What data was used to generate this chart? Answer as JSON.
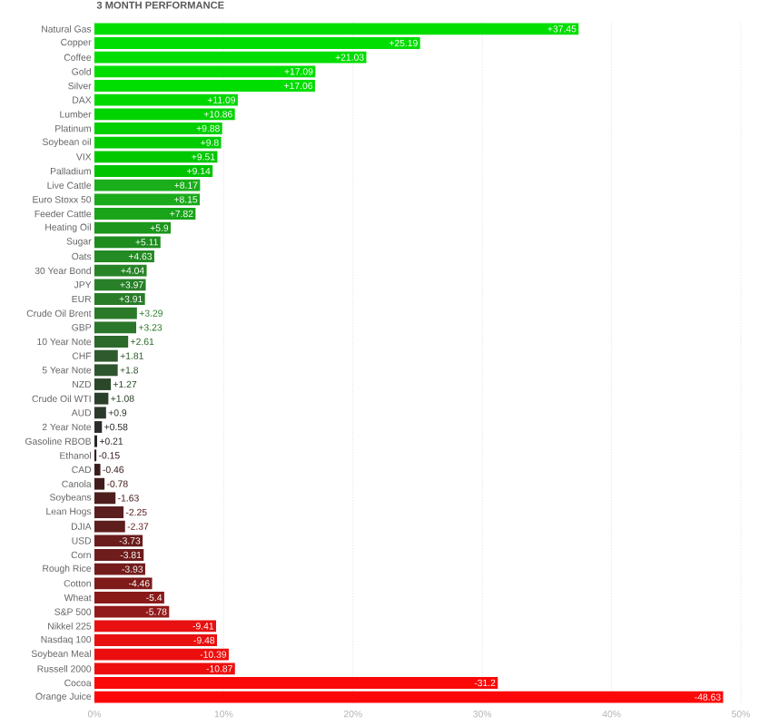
{
  "chart_data": {
    "type": "bar",
    "orientation": "horizontal",
    "title": "3 MONTH PERFORMANCE",
    "categories": [
      "Natural Gas",
      "Copper",
      "Coffee",
      "Gold",
      "Silver",
      "DAX",
      "Lumber",
      "Platinum",
      "Soybean oil",
      "VIX",
      "Palladium",
      "Live Cattle",
      "Euro Stoxx 50",
      "Feeder Cattle",
      "Heating Oil",
      "Sugar",
      "Oats",
      "30 Year Bond",
      "JPY",
      "EUR",
      "Crude Oil Brent",
      "GBP",
      "10 Year Note",
      "CHF",
      "5 Year Note",
      "NZD",
      "Crude Oil WTI",
      "AUD",
      "2 Year Note",
      "Gasoline RBOB",
      "Ethanol",
      "CAD",
      "Canola",
      "Soybeans",
      "Lean Hogs",
      "DJIA",
      "USD",
      "Corn",
      "Rough Rice",
      "Cotton",
      "Wheat",
      "S&P 500",
      "Nikkel 225",
      "Nasdaq 100",
      "Soybean Meal",
      "Russell 2000",
      "Cocoa",
      "Orange Juice"
    ],
    "values": [
      37.45,
      25.19,
      21.03,
      17.09,
      17.06,
      11.09,
      10.86,
      9.88,
      9.8,
      9.51,
      9.14,
      8.17,
      8.15,
      7.82,
      5.9,
      5.11,
      4.63,
      4.04,
      3.97,
      3.91,
      3.29,
      3.23,
      2.61,
      1.81,
      1.8,
      1.27,
      1.08,
      0.9,
      0.58,
      0.21,
      -0.15,
      -0.46,
      -0.78,
      -1.63,
      -2.25,
      -2.37,
      -3.73,
      -3.81,
      -3.93,
      -4.46,
      -5.4,
      -5.78,
      -9.41,
      -9.48,
      -10.39,
      -10.87,
      -31.2,
      -48.63
    ],
    "base": [
      0,
      0,
      0,
      0,
      0,
      0,
      0,
      0,
      0,
      0,
      0,
      0,
      0,
      0,
      0,
      0,
      0,
      0,
      0,
      0,
      0,
      0,
      0,
      0,
      0,
      0,
      0,
      0,
      0,
      0,
      0.15,
      0.46,
      0.78,
      1.63,
      2.25,
      2.37,
      3.73,
      3.81,
      3.93,
      4.46,
      5.4,
      5.78,
      9.41,
      9.48,
      10.39,
      10.87,
      31.2,
      48.63
    ],
    "value_labels": [
      "+37.45",
      "+25.19",
      "+21.03",
      "+17.09",
      "+17.06",
      "+11.09",
      "+10.86",
      "+9.88",
      "+9.8",
      "+9.51",
      "+9.14",
      "+8.17",
      "+8.15",
      "+7.82",
      "+5.9",
      "+5.11",
      "+4.63",
      "+4.04",
      "+3.97",
      "+3.91",
      "+3.29",
      "+3.23",
      "+2.61",
      "+1.81",
      "+1.8",
      "+1.27",
      "+1.08",
      "+0.9",
      "+0.58",
      "+0.21",
      "-0.15",
      "-0.46",
      "-0.78",
      "-1.63",
      "-2.25",
      "-2.37",
      "-3.73",
      "-3.81",
      "-3.93",
      "-4.46",
      "-5.4",
      "-5.78",
      "-9.41",
      "-9.48",
      "-10.39",
      "-10.87",
      "-31.2",
      "-48.63"
    ],
    "colors": [
      "#00dd00",
      "#00dd00",
      "#00dd00",
      "#00dd00",
      "#00dd00",
      "#00d800",
      "#00d400",
      "#00d000",
      "#00cc00",
      "#00c800",
      "#00c400",
      "#1aae1a",
      "#1aaa1a",
      "#1aa41a",
      "#1c961c",
      "#1e8c1e",
      "#248a24",
      "#268426",
      "#288028",
      "#287c28",
      "#2a7a2a",
      "#2a762a",
      "#2b6a2b",
      "#2e5a2e",
      "#2e562e",
      "#2a472a",
      "#2a402a",
      "#2b3a2b",
      "#2a2d2a",
      "#2c2626",
      "#321e1e",
      "#3a1c1c",
      "#421c1c",
      "#4e1e1e",
      "#5a1e1e",
      "#5e1e1e",
      "#6a1c1c",
      "#6e1c1c",
      "#741c1c",
      "#7e1a1a",
      "#8a1a1a",
      "#921a1a",
      "#e81010",
      "#e81010",
      "#ec0e0e",
      "#ee0e0e",
      "#fa0808",
      "#fc0808"
    ],
    "xlim": [
      0,
      50
    ],
    "xticks": [
      {
        "value": 0,
        "label": "0%"
      },
      {
        "value": 10,
        "label": "10%"
      },
      {
        "value": 20,
        "label": "20%"
      },
      {
        "value": 30,
        "label": "30%"
      },
      {
        "value": 40,
        "label": "40%"
      },
      {
        "value": 50,
        "label": "50%"
      }
    ],
    "grid": "x"
  }
}
